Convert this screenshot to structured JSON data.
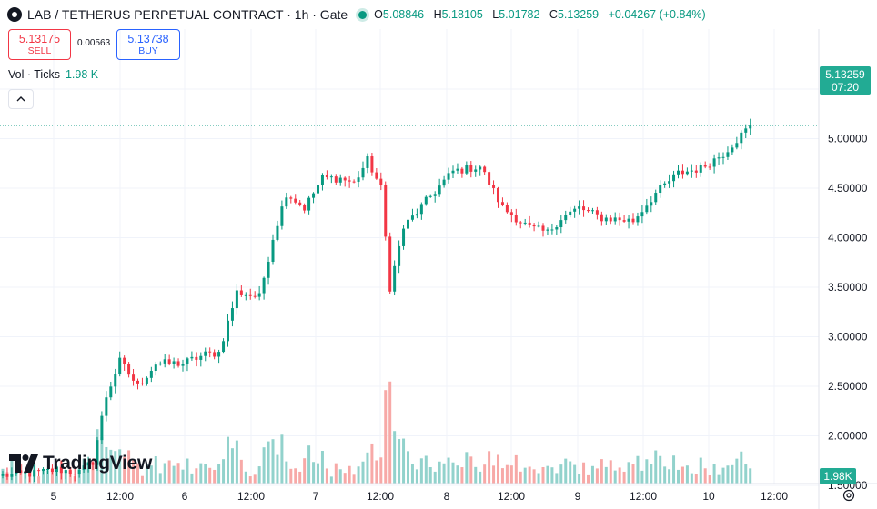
{
  "header": {
    "symbol_title": "LAB / TETHERUS PERPETUAL CONTRACT · 1h · Gate",
    "ohlc": {
      "o_label": "O",
      "o": "5.08846",
      "h_label": "H",
      "h": "5.18105",
      "l_label": "L",
      "l": "5.01782",
      "c_label": "C",
      "c": "5.13259",
      "change": "+0.04267 (+0.84%)"
    }
  },
  "trade": {
    "sell_price": "5.13175",
    "sell_label": "SELL",
    "spread": "0.00563",
    "buy_price": "5.13738",
    "buy_label": "BUY"
  },
  "volume_legend": {
    "label": "Vol · Ticks",
    "value": "1.98 K"
  },
  "last_price_tag": {
    "price": "5.13259",
    "countdown": "07:20"
  },
  "volume_tag": "1.98K",
  "watermark": "TradingView",
  "colors": {
    "up": "#089981",
    "down": "#f23645",
    "vol_up": "#92d2cc",
    "vol_down": "#f7a9a7",
    "grid": "#f0f3fa"
  },
  "icons": [
    "logo-icon",
    "live-dot-icon",
    "collapse-icon",
    "tradingview-logo-icon",
    "settings-icon"
  ],
  "chart_data": {
    "type": "candlestick",
    "timeframe": "1h",
    "y_ticks": [
      "5.50000",
      "5.00000",
      "4.50000",
      "4.00000",
      "3.50000",
      "3.00000",
      "2.50000",
      "2.00000",
      "1.50000"
    ],
    "ylim": [
      1.5,
      5.5
    ],
    "x_ticks": [
      "5",
      "12:00",
      "6",
      "12:00",
      "7",
      "12:00",
      "8",
      "12:00",
      "9",
      "12:00",
      "10",
      "12:00"
    ],
    "grid": true,
    "last_price": 5.13259,
    "anchors": [
      [
        0,
        1.6
      ],
      [
        7,
        1.62
      ],
      [
        12,
        1.66
      ],
      [
        17,
        1.63
      ],
      [
        20,
        1.74
      ],
      [
        23,
        2.4
      ],
      [
        26,
        2.75
      ],
      [
        30,
        2.5
      ],
      [
        34,
        2.73
      ],
      [
        40,
        2.73
      ],
      [
        45,
        2.82
      ],
      [
        48,
        2.84
      ],
      [
        52,
        3.45
      ],
      [
        57,
        3.4
      ],
      [
        60,
        4.0
      ],
      [
        63,
        4.45
      ],
      [
        67,
        4.3
      ],
      [
        71,
        4.6
      ],
      [
        75,
        4.6
      ],
      [
        78,
        4.55
      ],
      [
        81,
        4.78
      ],
      [
        84,
        4.5
      ],
      [
        86,
        3.5
      ],
      [
        89,
        4.1
      ],
      [
        95,
        4.42
      ],
      [
        100,
        4.67
      ],
      [
        106,
        4.72
      ],
      [
        111,
        4.3
      ],
      [
        117,
        4.1
      ],
      [
        121,
        4.05
      ],
      [
        124,
        4.2
      ],
      [
        128,
        4.3
      ],
      [
        133,
        4.2
      ],
      [
        140,
        4.17
      ],
      [
        145,
        4.45
      ],
      [
        150,
        4.65
      ],
      [
        155,
        4.7
      ],
      [
        160,
        4.85
      ],
      [
        166,
        5.13
      ]
    ],
    "volume_axis_value": "1.98K"
  }
}
